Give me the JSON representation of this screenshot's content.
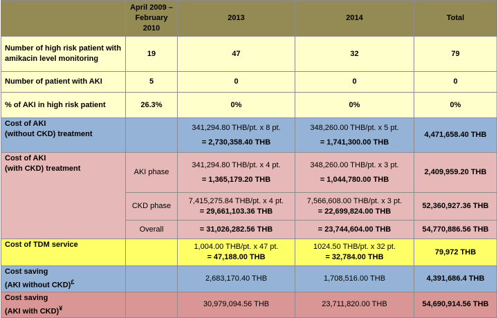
{
  "table": {
    "header": [
      "April 2009 – February 2010",
      "2013",
      "2014",
      "Total"
    ],
    "count_rows": [
      {
        "label": "Number of high risk patient with amikacin level monitoring",
        "values": [
          "19",
          "47",
          "32",
          "79"
        ]
      },
      {
        "label": "Number of patient with AKI",
        "values": [
          "5",
          "0",
          "0",
          "0"
        ]
      },
      {
        "label": "% of AKI in high risk patient",
        "values": [
          "26.3%",
          "0%",
          "0%",
          "0%"
        ]
      }
    ],
    "aki_without_ckd": {
      "label": [
        "Cost of AKI",
        "(without CKD) treatment"
      ],
      "y2013": [
        "341,294.80 THB/pt. x 8 pt.",
        "= 2,730,358.40 THB"
      ],
      "y2014": [
        "348,260.00 THB/pt. x 5 pt.",
        "= 1,741,300.00 THB"
      ],
      "total": "4,471,658.40 THB"
    },
    "aki_with_ckd": {
      "label": [
        "Cost of AKI",
        "(with CKD) treatment"
      ],
      "phases": [
        {
          "name": "AKI phase",
          "y2013": [
            "341,294.80 THB/pt. x 4 pt.",
            "= 1,365,179.20 THB"
          ],
          "y2014": [
            "348,260.00 THB/pt. x 3 pt.",
            "= 1,044,780.00 THB"
          ],
          "total": "2,409,959.20 THB"
        },
        {
          "name": "CKD phase",
          "y2013": [
            "7,415,275.84 THB/pt. x 4 pt.",
            "= 29,661,103.36 THB"
          ],
          "y2014": [
            "7,566,608.00 THB/pt. x 3 pt.",
            "= 22,699,824.00 THB"
          ],
          "total": "52,360,927.36 THB"
        },
        {
          "name": "Overall",
          "y2013": [
            "= 31,026,282.56 THB"
          ],
          "y2014": [
            "= 23,744,604.00 THB"
          ],
          "total": "54,770,886.56 THB"
        }
      ]
    },
    "tdm": {
      "label": "Cost of TDM service",
      "y2013": [
        "1,004.00 THB/pt. x 47 pt.",
        "= 47,188.00 THB"
      ],
      "y2014": [
        "1024.50 THB/pt. x 32 pt.",
        "= 32,784.00 THB"
      ],
      "total": "79,972 THB"
    },
    "saving_without_ckd": {
      "label": [
        "Cost saving",
        "(AKI without CKD)"
      ],
      "note": "£",
      "y2013": "2,683,170.40 THB",
      "y2014": "1,708,516.00 THB",
      "total": "4,391,686.4 THB"
    },
    "saving_with_ckd": {
      "label": [
        "Cost saving",
        "(AKI with CKD)"
      ],
      "note": "¥",
      "y2013": "30,979,094.56 THB",
      "y2014": "23,711,820.00 THB",
      "total": "54,690,914.56 THB"
    }
  }
}
